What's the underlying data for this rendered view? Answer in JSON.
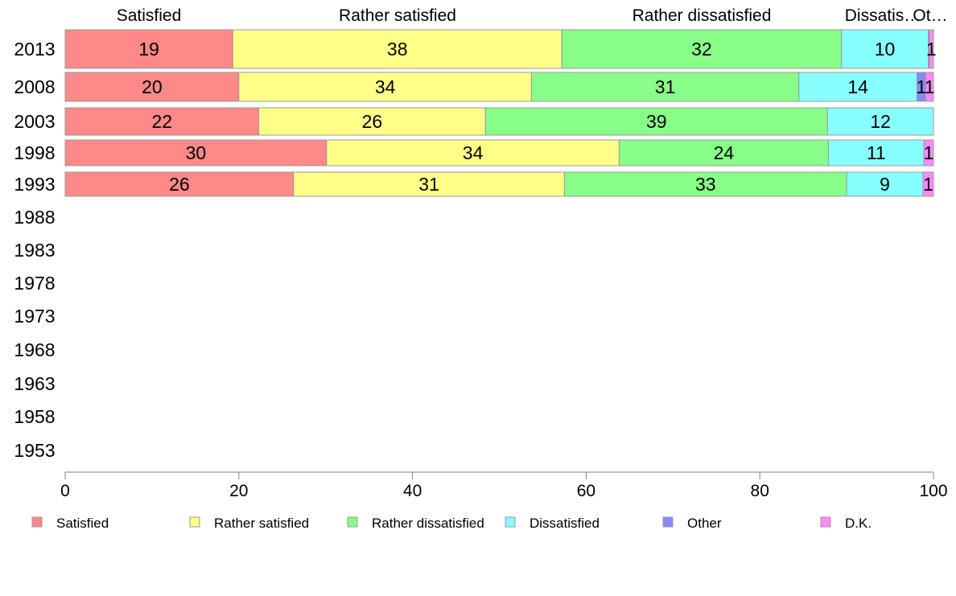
{
  "chart_data": {
    "type": "bar",
    "orientation": "horizontal",
    "stacked": true,
    "years": [
      "2013",
      "2008",
      "2003",
      "1998",
      "1993",
      "1988",
      "1983",
      "1978",
      "1973",
      "1968",
      "1963",
      "1958",
      "1953"
    ],
    "series": [
      {
        "name": "Satisfied",
        "color": "#ff8888",
        "values": [
          19.3,
          20.0,
          22.3,
          30.1,
          26.3,
          null,
          null,
          null,
          null,
          null,
          null,
          null,
          null
        ],
        "labels": [
          "19",
          "20",
          "22",
          "30",
          "26",
          "",
          "",
          "",
          "",
          "",
          "",
          "",
          ""
        ]
      },
      {
        "name": "Rather satisfied",
        "color": "#ffff88",
        "values": [
          37.9,
          33.7,
          26.1,
          33.7,
          31.2,
          null,
          null,
          null,
          null,
          null,
          null,
          null,
          null
        ],
        "labels": [
          "38",
          "34",
          "26",
          "34",
          "31",
          "",
          "",
          "",
          "",
          "",
          "",
          "",
          ""
        ]
      },
      {
        "name": "Rather dissatisfied",
        "color": "#88ff88",
        "values": [
          32.2,
          30.8,
          39.4,
          24.1,
          32.5,
          null,
          null,
          null,
          null,
          null,
          null,
          null,
          null
        ],
        "labels": [
          "32",
          "31",
          "39",
          "24",
          "33",
          "",
          "",
          "",
          "",
          "",
          "",
          "",
          ""
        ]
      },
      {
        "name": "Dissatisfied",
        "color": "#88ffff",
        "values": [
          10.0,
          13.6,
          12.2,
          11.0,
          8.8,
          null,
          null,
          null,
          null,
          null,
          null,
          null,
          null
        ],
        "labels": [
          "10",
          "14",
          "12",
          "11",
          "9",
          "",
          "",
          "",
          "",
          "",
          "",
          "",
          ""
        ]
      },
      {
        "name": "Other",
        "color": "#8888ff",
        "values": [
          0.1,
          1.0,
          0.0,
          0.0,
          0.0,
          null,
          null,
          null,
          null,
          null,
          null,
          null,
          null
        ],
        "labels": [
          "",
          "1",
          "",
          "",
          "",
          "",
          "",
          "",
          "",
          "",
          "",
          "",
          ""
        ]
      },
      {
        "name": "D.K.",
        "color": "#ff88ff",
        "values": [
          0.5,
          0.9,
          0.0,
          1.1,
          1.2,
          null,
          null,
          null,
          null,
          null,
          null,
          null,
          null
        ],
        "labels": [
          "1",
          "1",
          "",
          "1",
          "1",
          "",
          "",
          "",
          "",
          "",
          "",
          "",
          ""
        ]
      }
    ],
    "top_labels": [
      "Satisfied",
      "Rather satisfied",
      "Rather dissatisfied",
      "Dissatis…",
      "Ot…"
    ],
    "xlim": [
      0,
      100
    ],
    "xticks": [
      "0",
      "20",
      "40",
      "60",
      "80",
      "100"
    ],
    "grid": false,
    "legend_position": "bottom"
  }
}
